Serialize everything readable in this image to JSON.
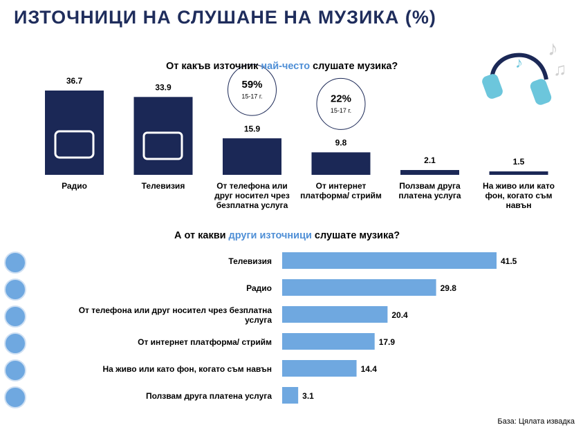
{
  "header": {
    "title": "ИЗТОЧНИЦИ НА СЛУШАНЕ НА МУЗИКА (%)"
  },
  "chart_data": [
    {
      "type": "bar",
      "title": [
        "От какъв източник",
        "най-често",
        "слушате музика?"
      ],
      "categories": [
        "Радио",
        "Телевизия",
        "От телефона  или\nдруг носител чрез\nбезплатна услуга",
        "От интернет\nплатформа/ стрийм",
        "Ползвам друга\nплатена услуга",
        "На живо или като\nфон, когато съм\nнавън"
      ],
      "values": [
        36.7,
        33.9,
        15.9,
        9.8,
        2.1,
        1.5
      ],
      "color": "#1b2856",
      "annotations": [
        {
          "category": "От телефона  или\nдруг носител чрез\nбезплатна услуга",
          "text": "59%",
          "subtext": "15-17 г."
        },
        {
          "category": "От интернет\nплатформа/ стрийм",
          "text": "22%",
          "subtext": "15-17 г."
        }
      ]
    },
    {
      "type": "hbar",
      "title": [
        "А от какви",
        "други източници",
        "слушате музика?"
      ],
      "categories": [
        "Телевизия",
        "Радио",
        "От телефона  или друг носител чрез безплатна\nуслуга",
        "От интернет платформа/ стрийм",
        "На живо или като фон, когато съм навън",
        "Ползвам друга платена услуга"
      ],
      "values": [
        41.5,
        29.8,
        20.4,
        17.9,
        14.4,
        3.1
      ],
      "color": "#6fa8e0"
    }
  ],
  "footer": {
    "note": "База: Цялата извадка"
  }
}
